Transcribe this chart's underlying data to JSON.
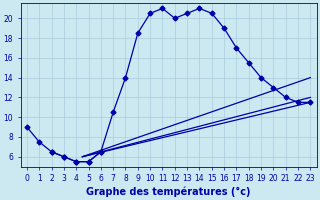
{
  "title": "Graphe des températures (°c)",
  "bg_color": "#cce8f0",
  "grid_color": "#aaccdd",
  "line_color": "#0000aa",
  "main_x": [
    0,
    1,
    2,
    3,
    4,
    5,
    6,
    7,
    8,
    9,
    10,
    11,
    12,
    13,
    14,
    15,
    16,
    17,
    18,
    19,
    20,
    21,
    22,
    23
  ],
  "main_y": [
    9.0,
    7.5,
    6.5,
    6.0,
    5.5,
    5.5,
    6.5,
    10.5,
    14.0,
    18.5,
    20.5,
    21.0,
    20.0,
    20.5,
    21.0,
    20.5,
    19.0,
    17.0,
    15.5,
    14.0,
    13.0,
    12.0,
    11.5,
    11.5
  ],
  "bot_x": [
    2,
    3,
    4,
    5,
    6
  ],
  "bot_y": [
    6.5,
    6.0,
    5.5,
    5.5,
    6.5
  ],
  "trend_lines": [
    {
      "x0": 4.5,
      "y0": 6.0,
      "x1": 23,
      "y1": 14.0
    },
    {
      "x0": 4.5,
      "y0": 6.0,
      "x1": 23,
      "y1": 12.0
    },
    {
      "x0": 4.5,
      "y0": 6.0,
      "x1": 23,
      "y1": 11.5
    }
  ],
  "ylim": [
    5.0,
    21.5
  ],
  "yticks": [
    6,
    8,
    10,
    12,
    14,
    16,
    18,
    20
  ],
  "xlim": [
    -0.5,
    23.5
  ],
  "xticks": [
    0,
    1,
    2,
    3,
    4,
    5,
    6,
    7,
    8,
    9,
    10,
    11,
    12,
    13,
    14,
    15,
    16,
    17,
    18,
    19,
    20,
    21,
    22,
    23
  ],
  "tick_fontsize": 5.5,
  "xlabel_fontsize": 7.0,
  "marker": "D",
  "markersize": 2.5,
  "linewidth": 0.9
}
